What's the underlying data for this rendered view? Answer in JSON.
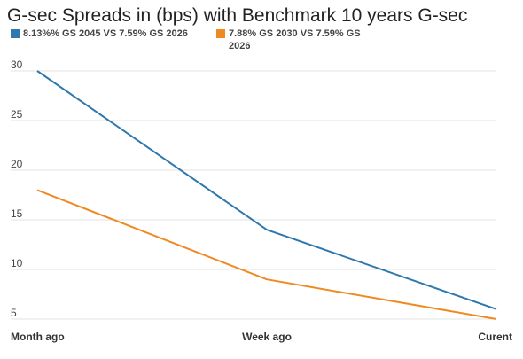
{
  "chart_data": {
    "type": "line",
    "title": "G-sec Spreads in (bps) with Benchmark 10 years G-sec",
    "categories": [
      "Month ago",
      "Week ago",
      "Curent"
    ],
    "series": [
      {
        "name": "8.13%% GS 2045 VS 7.59% GS 2026",
        "color": "#2f78ad",
        "values": [
          30,
          14,
          6
        ]
      },
      {
        "name": "7.88% GS 2030 VS 7.59% GS 2026",
        "color": "#ef8a22",
        "values": [
          18,
          9,
          5
        ]
      }
    ],
    "y_ticks": [
      5,
      10,
      15,
      20,
      25,
      30
    ],
    "ylim": [
      5,
      32
    ],
    "grid": true,
    "legend_position": "top-left"
  }
}
